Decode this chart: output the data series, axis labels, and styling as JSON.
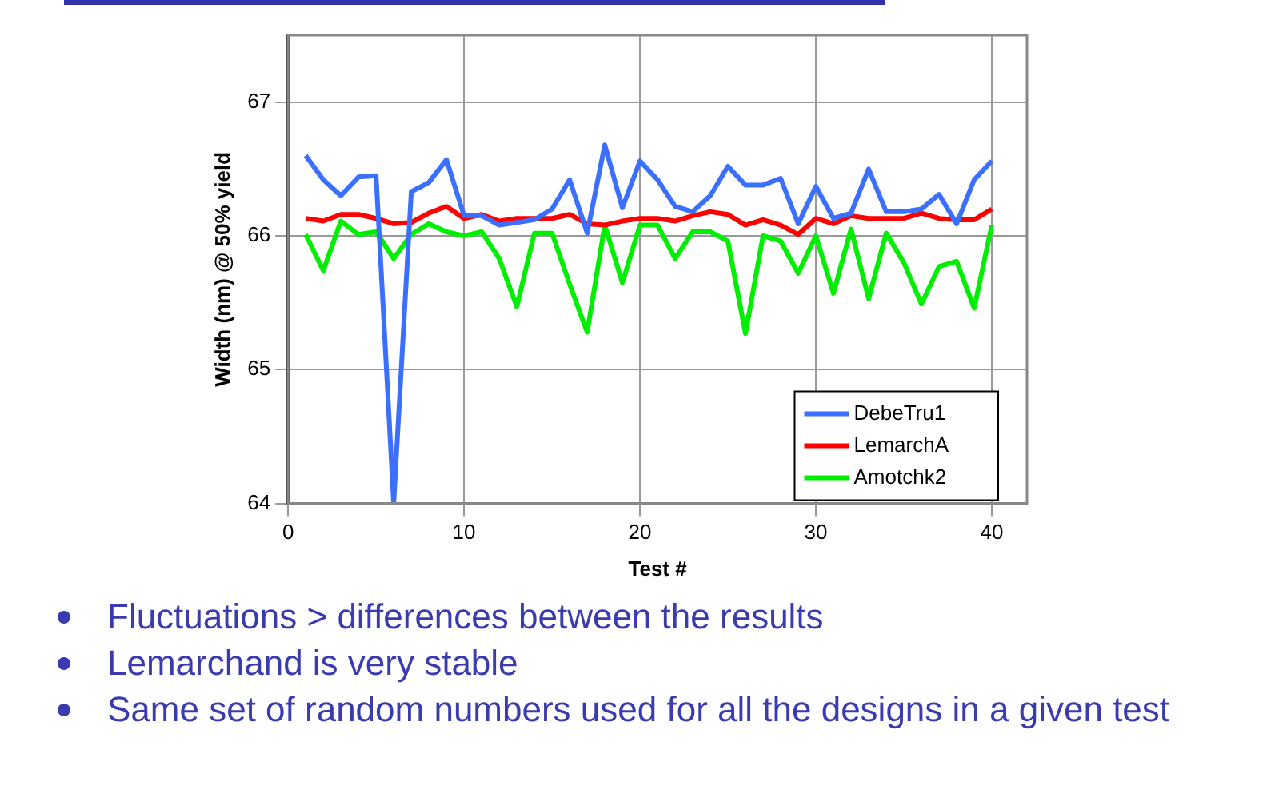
{
  "chart_data": {
    "type": "line",
    "xlabel": "Test #",
    "ylabel": "Width (nm) @ 50% yield",
    "x": [
      1,
      2,
      3,
      4,
      5,
      6,
      7,
      8,
      9,
      10,
      11,
      12,
      13,
      14,
      15,
      16,
      17,
      18,
      19,
      20,
      21,
      22,
      23,
      24,
      25,
      26,
      27,
      28,
      29,
      30,
      31,
      32,
      33,
      34,
      35,
      36,
      37,
      38,
      39,
      40
    ],
    "series": [
      {
        "name": "DebeTru1",
        "color": "#3a6fff",
        "values": [
          66.6,
          66.42,
          66.3,
          66.44,
          66.45,
          64,
          66.33,
          66.4,
          66.57,
          66.15,
          66.15,
          66.08,
          66.1,
          66.12,
          66.2,
          66.42,
          66.02,
          66.68,
          66.21,
          66.56,
          66.42,
          66.22,
          66.18,
          66.3,
          66.52,
          66.38,
          66.38,
          66.43,
          66.09,
          66.37,
          66.13,
          66.17,
          66.5,
          66.18,
          66.18,
          66.2,
          66.31,
          66.09,
          66.42,
          66.56
        ]
      },
      {
        "name": "LemarchA",
        "color": "#ff0000",
        "values": [
          66.13,
          66.11,
          66.16,
          66.16,
          66.13,
          66.09,
          66.1,
          66.17,
          66.22,
          66.13,
          66.16,
          66.11,
          66.13,
          66.13,
          66.13,
          66.16,
          66.09,
          66.08,
          66.11,
          66.13,
          66.13,
          66.11,
          66.15,
          66.18,
          66.16,
          66.08,
          66.12,
          66.08,
          66.01,
          66.13,
          66.09,
          66.15,
          66.13,
          66.13,
          66.13,
          66.17,
          66.13,
          66.12,
          66.12,
          66.2
        ]
      },
      {
        "name": "Amotchk2",
        "color": "#00ee00",
        "values": [
          66.01,
          65.74,
          66.11,
          66.01,
          66.03,
          65.83,
          66.01,
          66.09,
          66.03,
          66.0,
          66.03,
          65.83,
          65.47,
          66.02,
          66.02,
          65.64,
          65.28,
          66.08,
          65.65,
          66.08,
          66.08,
          65.83,
          66.03,
          66.03,
          65.96,
          65.27,
          66.0,
          65.96,
          65.72,
          66.0,
          65.57,
          66.05,
          65.53,
          66.02,
          65.8,
          65.49,
          65.77,
          65.81,
          65.46,
          66.08
        ]
      }
    ],
    "xlim": [
      0,
      42
    ],
    "xticks": [
      0,
      10,
      20,
      30,
      40
    ],
    "ylim": [
      64,
      67.5
    ],
    "yticks": [
      64,
      65,
      66,
      67
    ],
    "grid": true,
    "legend": "bottom right",
    "marker": "none",
    "line_style": "solid",
    "annotations": [
      "Fluctuations > differences between the results",
      "Lemarchand is very stable",
      "Same set of random numbers used for all the designs in a given test"
    ]
  }
}
